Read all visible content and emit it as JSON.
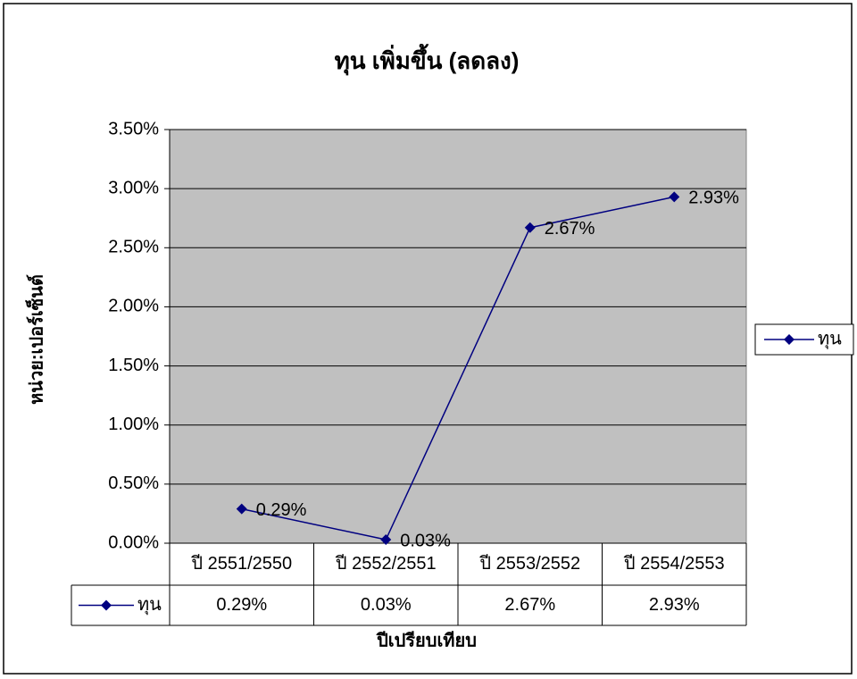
{
  "chart_data": {
    "type": "line",
    "title": "ทุน เพิ่มขึ้น (ลดลง)",
    "y_label": "หน่วย:เปอร์เซ็นต์",
    "x_label": "ปีเปรียบเทียบ",
    "categories": [
      "ปี 2551/2550",
      "ปี 2552/2551",
      "ปี 2553/2552",
      "ปี 2554/2553"
    ],
    "series": [
      {
        "name": "ทุน",
        "color": "#000080",
        "values": [
          0.29,
          0.03,
          2.67,
          2.93
        ],
        "value_labels": [
          "0.29%",
          "0.03%",
          "2.67%",
          "2.93%"
        ]
      }
    ],
    "ylim": [
      0,
      3.5
    ],
    "yticks": [
      {
        "value": 0,
        "label": "0.00%"
      },
      {
        "value": 0.5,
        "label": "0.50%"
      },
      {
        "value": 1,
        "label": "1.00%"
      },
      {
        "value": 1.5,
        "label": "1.50%"
      },
      {
        "value": 2,
        "label": "2.00%"
      },
      {
        "value": 2.5,
        "label": "2.50%"
      },
      {
        "value": 3,
        "label": "3.00%"
      },
      {
        "value": 3.5,
        "label": "3.50%"
      }
    ],
    "grid": true,
    "legend": "right",
    "plot_background": "#c0c0c0"
  }
}
